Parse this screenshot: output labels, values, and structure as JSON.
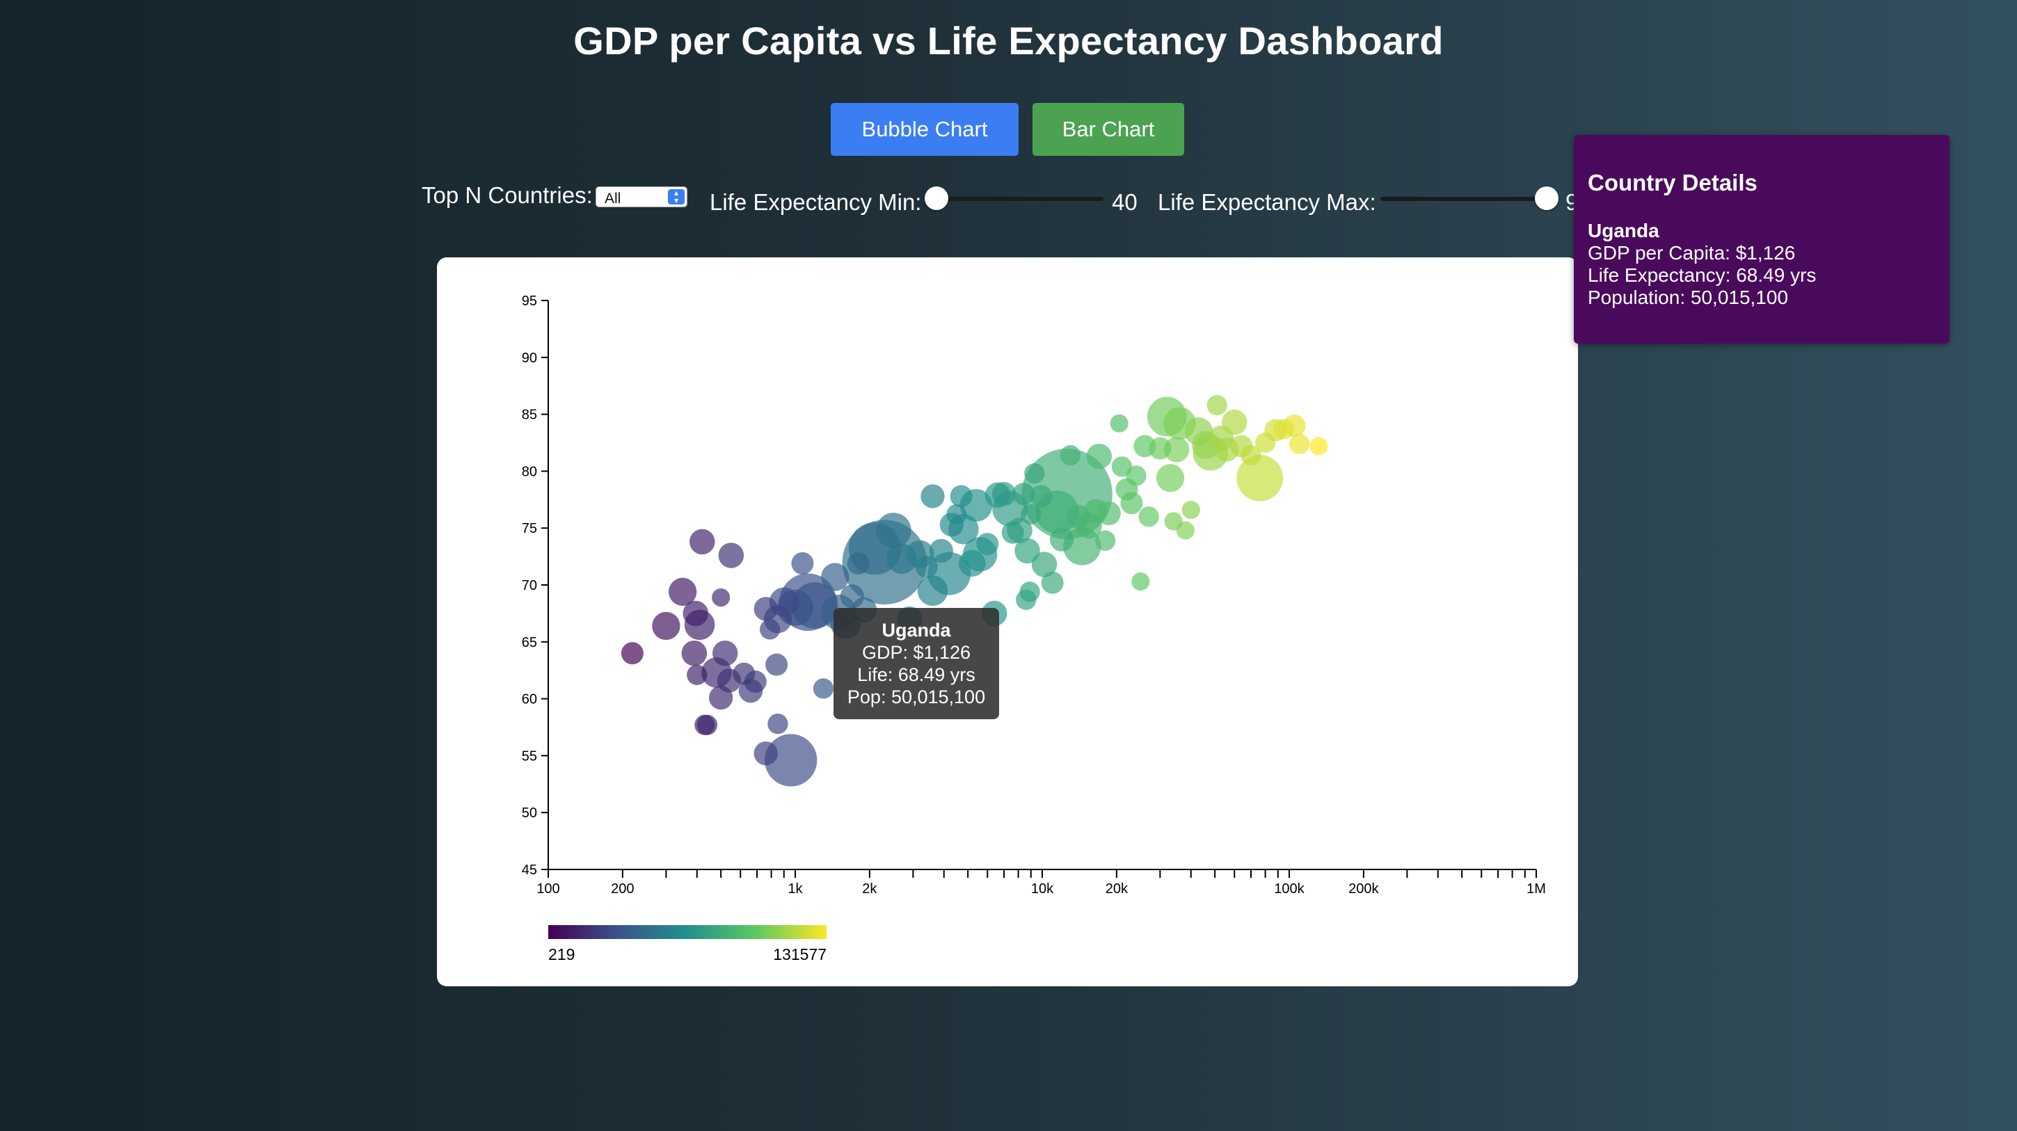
{
  "page": {
    "title": "GDP per Capita vs Life Expectancy Dashboard"
  },
  "buttons": {
    "bubble_label": "Bubble Chart",
    "bar_label": "Bar Chart",
    "bubble_color": "#3b7ef3",
    "bar_color": "#4ba352"
  },
  "controls": {
    "topn_label": "Top N Countries:",
    "topn_value": "All",
    "le_min_label": "Life Expectancy Min:",
    "le_min_value": "40",
    "le_max_label": "Life Expectancy Max:",
    "le_max_value": "9"
  },
  "tooltip": {
    "name": "Uganda",
    "gdp": "GDP: $1,126",
    "life": "Life: 68.49 yrs",
    "pop": "Pop: 50,015,100"
  },
  "details": {
    "title": "Country Details",
    "country": "Uganda",
    "gdp": "GDP per Capita: $1,126",
    "life": "Life Expectancy: 68.49 yrs",
    "population": "Population: 50,015,100",
    "background_color": "#4a0a5b"
  },
  "chart_data": {
    "type": "scatter",
    "title": "",
    "xlabel": "",
    "ylabel": "",
    "x_scale": "log",
    "xlim": [
      100,
      1000000
    ],
    "ylim": [
      45,
      95
    ],
    "x_ticks": [
      {
        "value": 100,
        "label": "100"
      },
      {
        "value": 200,
        "label": "200"
      },
      {
        "value": 1000,
        "label": "1k"
      },
      {
        "value": 2000,
        "label": "2k"
      },
      {
        "value": 10000,
        "label": "10k"
      },
      {
        "value": 20000,
        "label": "20k"
      },
      {
        "value": 100000,
        "label": "100k"
      },
      {
        "value": 200000,
        "label": "200k"
      },
      {
        "value": 1000000,
        "label": "1M"
      }
    ],
    "y_ticks": [
      "45",
      "50",
      "55",
      "60",
      "65",
      "70",
      "75",
      "80",
      "85",
      "90",
      "95"
    ],
    "grid": false,
    "color_scale": {
      "name": "viridis",
      "min_label": "219",
      "max_label": "131577",
      "min": 219,
      "max": 131577
    },
    "points": [
      {
        "gdp": 219,
        "life": 64.0,
        "pop": 4
      },
      {
        "gdp": 300,
        "life": 66.4,
        "pop": 8
      },
      {
        "gdp": 350,
        "life": 69.4,
        "pop": 8
      },
      {
        "gdp": 390,
        "life": 64.0,
        "pop": 6
      },
      {
        "gdp": 400,
        "life": 62.1,
        "pop": 3
      },
      {
        "gdp": 395,
        "life": 67.5,
        "pop": 6
      },
      {
        "gdp": 410,
        "life": 66.5,
        "pop": 10
      },
      {
        "gdp": 420,
        "life": 73.8,
        "pop": 6
      },
      {
        "gdp": 430,
        "life": 57.7,
        "pop": 3
      },
      {
        "gdp": 440,
        "life": 57.7,
        "pop": 3
      },
      {
        "gdp": 480,
        "life": 62.3,
        "pop": 10
      },
      {
        "gdp": 500,
        "life": 60.1,
        "pop": 5
      },
      {
        "gdp": 500,
        "life": 68.9,
        "pop": 2
      },
      {
        "gdp": 550,
        "life": 72.6,
        "pop": 6
      },
      {
        "gdp": 520,
        "life": 64.0,
        "pop": 6
      },
      {
        "gdp": 540,
        "life": 61.6,
        "pop": 5
      },
      {
        "gdp": 620,
        "life": 62.2,
        "pop": 4
      },
      {
        "gdp": 660,
        "life": 60.7,
        "pop": 5
      },
      {
        "gdp": 690,
        "life": 61.5,
        "pop": 4
      },
      {
        "gdp": 760,
        "life": 67.9,
        "pop": 5
      },
      {
        "gdp": 790,
        "life": 66.1,
        "pop": 3
      },
      {
        "gdp": 840,
        "life": 63.0,
        "pop": 4
      },
      {
        "gdp": 850,
        "life": 57.8,
        "pop": 3
      },
      {
        "gdp": 760,
        "life": 55.2,
        "pop": 5
      },
      {
        "gdp": 850,
        "life": 67.0,
        "pop": 8
      },
      {
        "gdp": 900,
        "life": 68.5,
        "pop": 9
      },
      {
        "gdp": 960,
        "life": 54.6,
        "pop": 40
      },
      {
        "gdp": 1000,
        "life": 68.0,
        "pop": 16
      },
      {
        "gdp": 1070,
        "life": 71.9,
        "pop": 4
      },
      {
        "gdp": 1126,
        "life": 68.49,
        "pop": 50
      },
      {
        "gdp": 1200,
        "life": 68.2,
        "pop": 30
      },
      {
        "gdp": 1300,
        "life": 60.9,
        "pop": 3
      },
      {
        "gdp": 1450,
        "life": 70.7,
        "pop": 8
      },
      {
        "gdp": 1500,
        "life": 67.6,
        "pop": 15
      },
      {
        "gdp": 1600,
        "life": 66.6,
        "pop": 10
      },
      {
        "gdp": 1700,
        "life": 69.0,
        "pop": 5
      },
      {
        "gdp": 1800,
        "life": 71.9,
        "pop": 4
      },
      {
        "gdp": 1900,
        "life": 67.8,
        "pop": 6
      },
      {
        "gdp": 2100,
        "life": 73.2,
        "pop": 40
      },
      {
        "gdp": 2300,
        "life": 72.0,
        "pop": 120
      },
      {
        "gdp": 2500,
        "life": 74.8,
        "pop": 15
      },
      {
        "gdp": 2700,
        "life": 72.3,
        "pop": 10
      },
      {
        "gdp": 2900,
        "life": 67.0,
        "pop": 6
      },
      {
        "gdp": 3200,
        "life": 72.7,
        "pop": 8
      },
      {
        "gdp": 3400,
        "life": 71.6,
        "pop": 4
      },
      {
        "gdp": 3600,
        "life": 69.5,
        "pop": 10
      },
      {
        "gdp": 3600,
        "life": 77.8,
        "pop": 5
      },
      {
        "gdp": 3900,
        "life": 73.0,
        "pop": 5
      },
      {
        "gdp": 4200,
        "life": 71.0,
        "pop": 25
      },
      {
        "gdp": 4300,
        "life": 75.3,
        "pop": 5
      },
      {
        "gdp": 4500,
        "life": 76.2,
        "pop": 3
      },
      {
        "gdp": 4700,
        "life": 77.8,
        "pop": 4
      },
      {
        "gdp": 4800,
        "life": 74.9,
        "pop": 10
      },
      {
        "gdp": 5200,
        "life": 71.9,
        "pop": 7
      },
      {
        "gdp": 5400,
        "life": 77.0,
        "pop": 12
      },
      {
        "gdp": 5600,
        "life": 72.7,
        "pop": 14
      },
      {
        "gdp": 6000,
        "life": 73.6,
        "pop": 4
      },
      {
        "gdp": 6400,
        "life": 67.5,
        "pop": 6
      },
      {
        "gdp": 6600,
        "life": 77.9,
        "pop": 6
      },
      {
        "gdp": 7000,
        "life": 78.0,
        "pop": 5
      },
      {
        "gdp": 7400,
        "life": 76.7,
        "pop": 15
      },
      {
        "gdp": 7600,
        "life": 74.6,
        "pop": 4
      },
      {
        "gdp": 8100,
        "life": 74.8,
        "pop": 6
      },
      {
        "gdp": 8400,
        "life": 78.0,
        "pop": 4
      },
      {
        "gdp": 8700,
        "life": 73.0,
        "pop": 6
      },
      {
        "gdp": 8600,
        "life": 68.7,
        "pop": 3
      },
      {
        "gdp": 8900,
        "life": 69.4,
        "pop": 3
      },
      {
        "gdp": 9000,
        "life": 76.2,
        "pop": 3
      },
      {
        "gdp": 9300,
        "life": 79.8,
        "pop": 3
      },
      {
        "gdp": 9900,
        "life": 77.8,
        "pop": 4
      },
      {
        "gdp": 10200,
        "life": 71.8,
        "pop": 6
      },
      {
        "gdp": 11000,
        "life": 70.2,
        "pop": 4
      },
      {
        "gdp": 11500,
        "life": 76.4,
        "pop": 25
      },
      {
        "gdp": 12000,
        "life": 74.0,
        "pop": 5
      },
      {
        "gdp": 12600,
        "life": 78.0,
        "pop": 140
      },
      {
        "gdp": 13000,
        "life": 81.4,
        "pop": 3
      },
      {
        "gdp": 14000,
        "life": 76.0,
        "pop": 5
      },
      {
        "gdp": 14500,
        "life": 73.4,
        "pop": 18
      },
      {
        "gdp": 15500,
        "life": 75.2,
        "pop": 6
      },
      {
        "gdp": 16500,
        "life": 76.5,
        "pop": 5
      },
      {
        "gdp": 17000,
        "life": 81.3,
        "pop": 6
      },
      {
        "gdp": 18000,
        "life": 73.9,
        "pop": 3
      },
      {
        "gdp": 18600,
        "life": 76.3,
        "pop": 5
      },
      {
        "gdp": 20500,
        "life": 84.2,
        "pop": 2
      },
      {
        "gdp": 21000,
        "life": 80.4,
        "pop": 3
      },
      {
        "gdp": 22000,
        "life": 78.4,
        "pop": 4
      },
      {
        "gdp": 23000,
        "life": 77.2,
        "pop": 4
      },
      {
        "gdp": 24000,
        "life": 79.6,
        "pop": 3
      },
      {
        "gdp": 25000,
        "life": 70.3,
        "pop": 2
      },
      {
        "gdp": 26000,
        "life": 82.2,
        "pop": 4
      },
      {
        "gdp": 27000,
        "life": 76.0,
        "pop": 3
      },
      {
        "gdp": 30000,
        "life": 82.0,
        "pop": 4
      },
      {
        "gdp": 32000,
        "life": 84.8,
        "pop": 20
      },
      {
        "gdp": 33000,
        "life": 79.4,
        "pop": 8
      },
      {
        "gdp": 34000,
        "life": 75.6,
        "pop": 2
      },
      {
        "gdp": 35000,
        "life": 81.9,
        "pop": 6
      },
      {
        "gdp": 36000,
        "life": 84.2,
        "pop": 12
      },
      {
        "gdp": 38000,
        "life": 74.8,
        "pop": 2
      },
      {
        "gdp": 40000,
        "life": 76.6,
        "pop": 2
      },
      {
        "gdp": 43000,
        "life": 83.5,
        "pop": 8
      },
      {
        "gdp": 46000,
        "life": 82.3,
        "pop": 8
      },
      {
        "gdp": 48000,
        "life": 81.6,
        "pop": 15
      },
      {
        "gdp": 51000,
        "life": 85.8,
        "pop": 3
      },
      {
        "gdp": 53000,
        "life": 82.9,
        "pop": 6
      },
      {
        "gdp": 56000,
        "life": 81.9,
        "pop": 5
      },
      {
        "gdp": 60000,
        "life": 84.3,
        "pop": 6
      },
      {
        "gdp": 64000,
        "life": 82.2,
        "pop": 4
      },
      {
        "gdp": 70000,
        "life": 81.4,
        "pop": 3
      },
      {
        "gdp": 76000,
        "life": 79.4,
        "pop": 30
      },
      {
        "gdp": 80000,
        "life": 82.5,
        "pop": 3
      },
      {
        "gdp": 88000,
        "life": 83.6,
        "pop": 4
      },
      {
        "gdp": 95000,
        "life": 83.7,
        "pop": 3
      },
      {
        "gdp": 105000,
        "life": 84.0,
        "pop": 4
      },
      {
        "gdp": 110000,
        "life": 82.4,
        "pop": 3
      },
      {
        "gdp": 131577,
        "life": 82.2,
        "pop": 2
      }
    ]
  }
}
